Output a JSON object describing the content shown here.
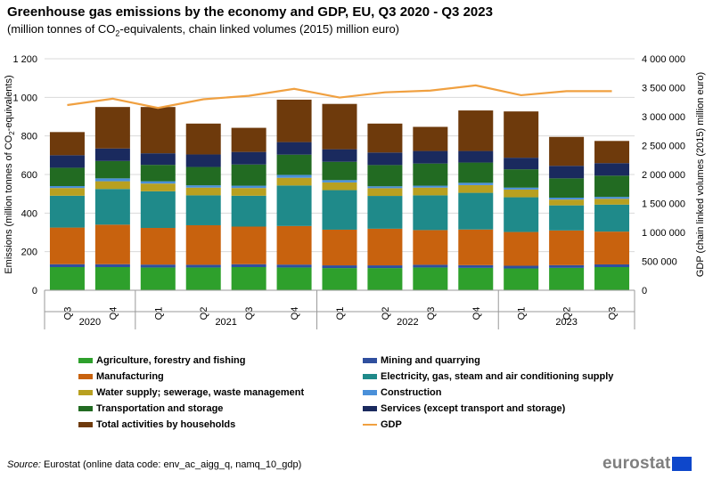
{
  "title": "Greenhouse gas emissions by the economy and GDP, EU, Q3 2020 - Q3 2023",
  "subtitle_prefix": "(million tonnes of CO",
  "subtitle_sub": "2",
  "subtitle_suffix": "-equivalents, chain linked volumes (2015) million euro)",
  "source_label": "Source:",
  "source_text": " Eurostat (online data code: env_ac_aigg_q, namq_10_gdp)",
  "logo_text": "eurostat",
  "chart_data": {
    "type": "bar",
    "stacked": true,
    "title": "Greenhouse gas emissions by the economy and GDP, EU, Q3 2020 - Q3 2023",
    "categories": [
      "Q3",
      "Q4",
      "Q1",
      "Q2",
      "Q3",
      "Q4",
      "Q1",
      "Q2",
      "Q3",
      "Q4",
      "Q1",
      "Q2",
      "Q3"
    ],
    "year_groups": [
      {
        "label": "2020",
        "count": 2
      },
      {
        "label": "2021",
        "count": 4
      },
      {
        "label": "2022",
        "count": 4
      },
      {
        "label": "2023",
        "count": 3
      }
    ],
    "ylabel_left_prefix": "Emissions (million tonnes of CO",
    "ylabel_left_sub": "2",
    "ylabel_left_suffix": "-equivalents)",
    "ylabel_right": "GDP (chain linked volumes (2015) million euro)",
    "ylim_left": [
      0,
      1200
    ],
    "ylim_right": [
      0,
      4000000
    ],
    "yticks_left": [
      "0",
      "200",
      "400",
      "600",
      "800",
      "1 000",
      "1 200"
    ],
    "yticks_right": [
      "0",
      "500 000",
      "1 000 000",
      "1 500 000",
      "2 000 000",
      "2 500 000",
      "3 000 000",
      "3 500 000",
      "4 000 000"
    ],
    "series": [
      {
        "name": "Agriculture, forestry and fishing",
        "color": "#2ea02c",
        "values": [
          120,
          120,
          118,
          118,
          120,
          118,
          115,
          115,
          118,
          116,
          113,
          116,
          120
        ]
      },
      {
        "name": "Mining and quarrying",
        "color": "#2f4f9e",
        "values": [
          15,
          15,
          15,
          14,
          15,
          15,
          14,
          14,
          14,
          14,
          14,
          14,
          14
        ]
      },
      {
        "name": "Manufacturing",
        "color": "#c8620e",
        "values": [
          190,
          205,
          190,
          205,
          195,
          200,
          185,
          190,
          180,
          185,
          175,
          180,
          170
        ]
      },
      {
        "name": "Electricity, gas, steam and air conditioning supply",
        "color": "#1f8a8a",
        "values": [
          165,
          185,
          190,
          155,
          160,
          210,
          205,
          170,
          180,
          190,
          180,
          130,
          140
        ]
      },
      {
        "name": "Water supply; sewerage, waste management",
        "color": "#b8a020",
        "values": [
          40,
          40,
          40,
          40,
          40,
          40,
          40,
          40,
          40,
          40,
          40,
          30,
          30
        ]
      },
      {
        "name": "Construction",
        "color": "#4a90d9",
        "values": [
          10,
          15,
          12,
          12,
          12,
          15,
          12,
          10,
          10,
          12,
          10,
          10,
          10
        ]
      },
      {
        "name": "Transportation and storage",
        "color": "#226b22",
        "values": [
          95,
          90,
          85,
          95,
          110,
          105,
          95,
          110,
          115,
          105,
          95,
          100,
          110
        ]
      },
      {
        "name": "Services (except transport and storage)",
        "color": "#1a2a5e",
        "values": [
          65,
          65,
          60,
          65,
          65,
          65,
          65,
          65,
          65,
          60,
          60,
          65,
          65
        ]
      },
      {
        "name": "Total activities by households",
        "color": "#6e3a0c",
        "values": [
          120,
          215,
          240,
          160,
          125,
          220,
          235,
          150,
          125,
          210,
          240,
          150,
          115
        ]
      }
    ],
    "line_series": {
      "name": "GDP",
      "color": "#f0a040",
      "axis": "right",
      "values": [
        3200000,
        3310000,
        3150000,
        3300000,
        3360000,
        3480000,
        3330000,
        3420000,
        3450000,
        3540000,
        3370000,
        3440000,
        3440000
      ]
    }
  }
}
